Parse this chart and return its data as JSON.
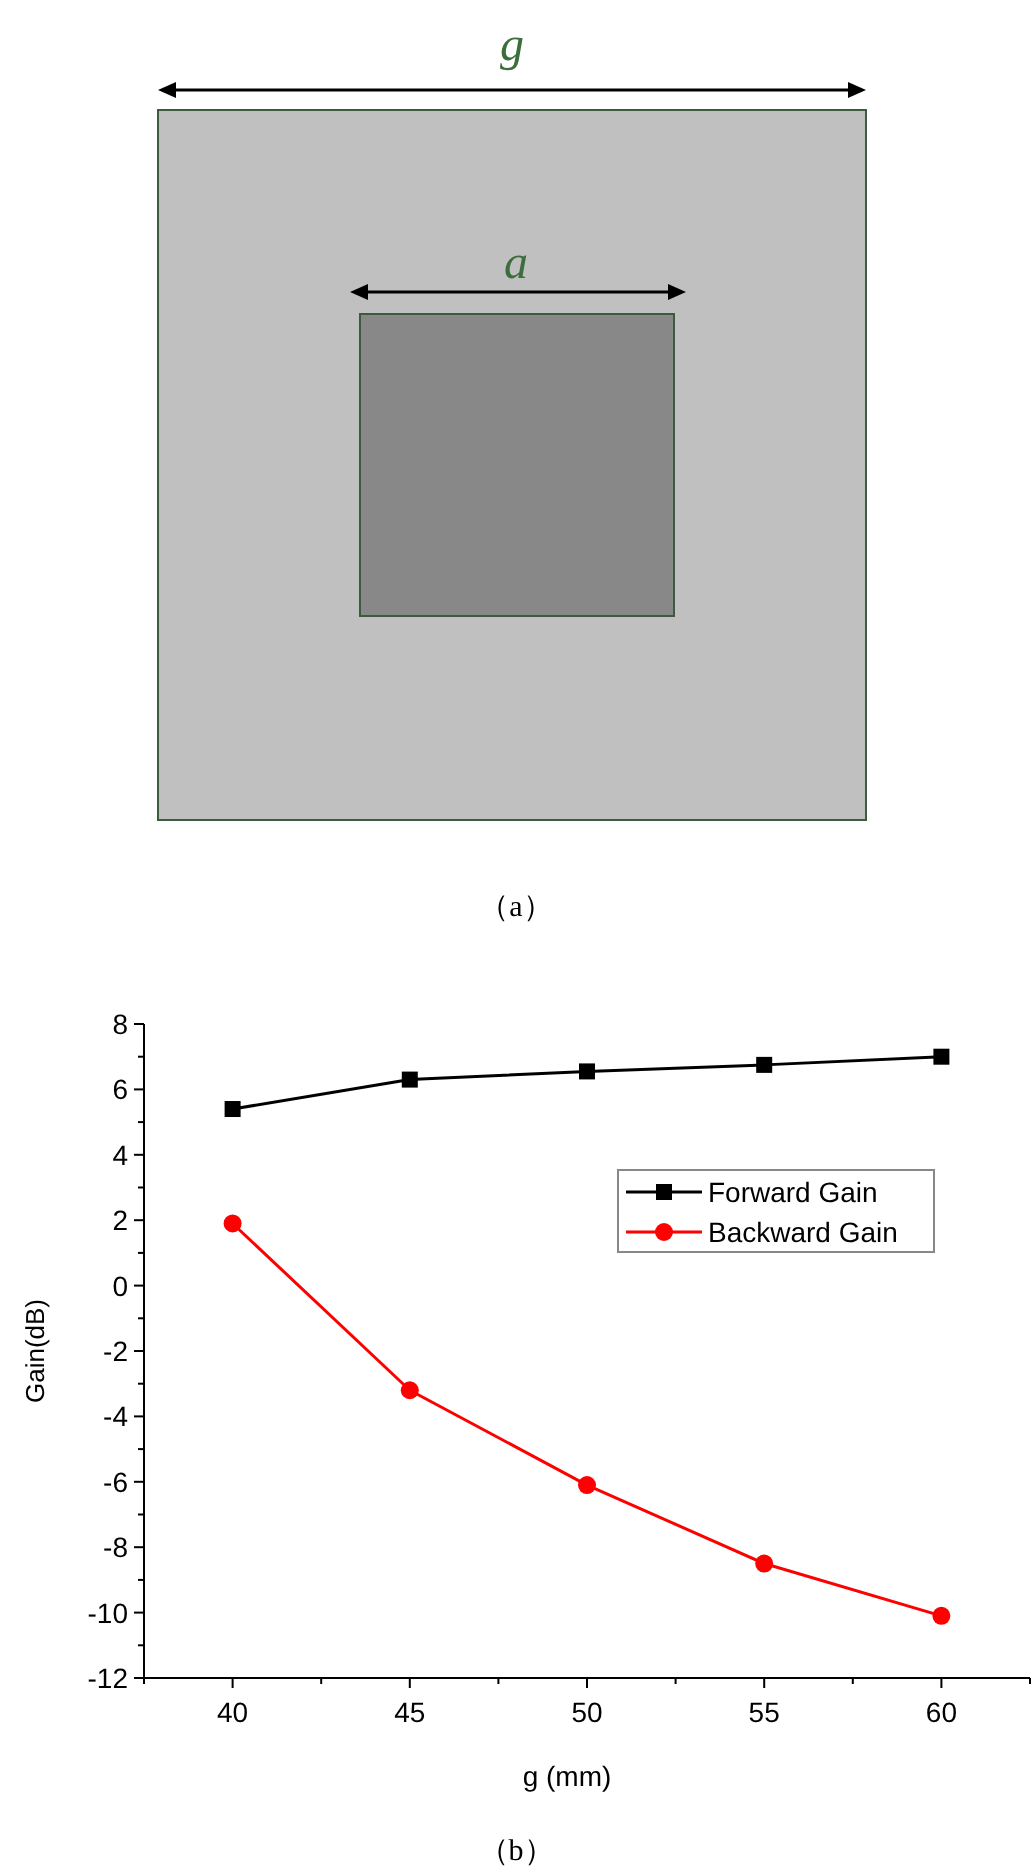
{
  "chart_data": [
    {
      "type": "other",
      "annotations": [
        "g",
        "a",
        "（a）"
      ]
    },
    {
      "type": "line",
      "xlabel": "g (mm)",
      "ylabel": "Gain(dB)",
      "annotations": [
        "（b）"
      ],
      "x": [
        40,
        45,
        50,
        55,
        60
      ],
      "series": [
        {
          "name": "Forward Gain",
          "color": "#000000",
          "marker": "square",
          "values": [
            5.4,
            6.3,
            6.55,
            6.75,
            7.0
          ]
        },
        {
          "name": "Backward Gain",
          "color": "#ff0000",
          "marker": "circle",
          "values": [
            1.9,
            -3.2,
            -6.1,
            -8.5,
            -10.1
          ]
        }
      ],
      "xlim": [
        37.5,
        62.5
      ],
      "xticks": [
        {
          "value": 37.5,
          "label": null
        },
        40,
        {
          "value": 42.5,
          "label": null
        },
        45,
        {
          "value": 47.5,
          "label": null
        },
        50,
        {
          "value": 52.5,
          "label": null
        },
        55,
        {
          "value": 57.5,
          "label": null
        },
        60,
        {
          "value": 62.5,
          "label": null
        }
      ],
      "ylim": [
        -12,
        8
      ],
      "yticks": [
        -12,
        {
          "value": -11,
          "label": null
        },
        -10,
        {
          "value": -9,
          "label": null
        },
        -8,
        {
          "value": -7,
          "label": null
        },
        -6,
        {
          "value": -5,
          "label": null
        },
        -4,
        {
          "value": -3,
          "label": null
        },
        -2,
        {
          "value": -1,
          "label": null
        },
        0,
        {
          "value": 1,
          "label": null
        },
        2,
        {
          "value": 3,
          "label": null
        },
        4,
        {
          "value": 5,
          "label": null
        },
        6,
        {
          "value": 7,
          "label": null
        },
        8
      ],
      "grid": false,
      "legend": "top right",
      "line_style": "solid"
    }
  ]
}
